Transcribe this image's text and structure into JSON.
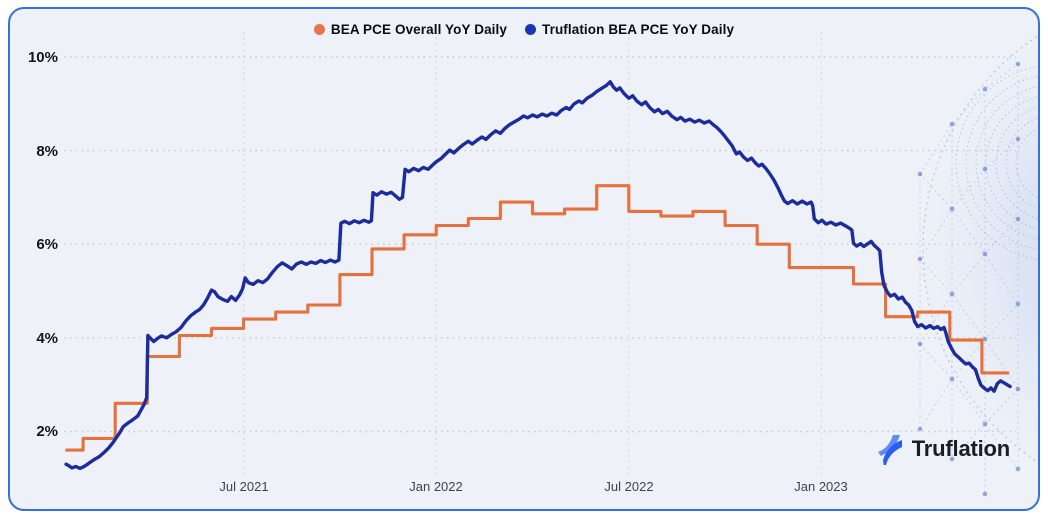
{
  "legend": {
    "items": [
      {
        "label": "BEA PCE Overall YoY Daily",
        "color": "#E8744A"
      },
      {
        "label": "Truflation BEA PCE YoY Daily",
        "color": "#1B35B5"
      }
    ]
  },
  "y_axis": {
    "labels": [
      "10%",
      "8%",
      "6%",
      "4%",
      "2%"
    ]
  },
  "x_axis": {
    "labels": [
      "Jul 2021",
      "Jan 2022",
      "Jul 2022",
      "Jan 2023"
    ]
  },
  "branding": {
    "name": "Truflation"
  },
  "colors": {
    "card_background": "#EEF1F7",
    "card_border": "#3470DE",
    "grid": "#C7CCD6",
    "bea_line": "#E5713C",
    "truflation_line": "#1C2B9D"
  },
  "chart_data": {
    "type": "line",
    "x_unit": "months since Jan 2021",
    "y_unit": "percent YoY",
    "ylim": [
      1,
      10.5
    ],
    "grid": "dotted",
    "legend_position": "top-center",
    "y_ticks": [
      10,
      8,
      6,
      4,
      2
    ],
    "x_ticks": [
      {
        "label": "Jul 2021",
        "month": 6
      },
      {
        "label": "Jan 2022",
        "month": 12
      },
      {
        "label": "Jul 2022",
        "month": 18
      },
      {
        "label": "Jan 2023",
        "month": 24
      }
    ],
    "series": [
      {
        "name": "BEA PCE Overall YoY Daily",
        "type": "step-monthly",
        "color": "#E5713C",
        "start_month": 0.45,
        "end_month": 29.85,
        "months": [
          "Jan 2021",
          "Feb 2021",
          "Mar 2021",
          "Apr 2021",
          "May 2021",
          "Jun 2021",
          "Jul 2021",
          "Aug 2021",
          "Sep 2021",
          "Oct 2021",
          "Nov 2021",
          "Dec 2021",
          "Jan 2022",
          "Feb 2022",
          "Mar 2022",
          "Apr 2022",
          "May 2022",
          "Jun 2022",
          "Jul 2022",
          "Aug 2022",
          "Sep 2022",
          "Oct 2022",
          "Nov 2022",
          "Dec 2022",
          "Jan 2023",
          "Feb 2023",
          "Mar 2023",
          "Apr 2023",
          "May 2023",
          "Jun 2023"
        ],
        "values": [
          1.6,
          1.85,
          2.6,
          3.6,
          4.05,
          4.2,
          4.4,
          4.55,
          4.7,
          5.35,
          5.9,
          6.2,
          6.4,
          6.55,
          6.9,
          6.65,
          6.75,
          7.25,
          6.7,
          6.6,
          6.7,
          6.4,
          6.0,
          5.5,
          5.5,
          5.15,
          4.45,
          4.55,
          3.95,
          3.25
        ]
      },
      {
        "name": "Truflation BEA PCE YoY Daily",
        "type": "line-daily",
        "color": "#1C2B9D",
        "points": [
          [
            0.47,
            1.3
          ],
          [
            0.55,
            1.27
          ],
          [
            0.65,
            1.22
          ],
          [
            0.78,
            1.25
          ],
          [
            0.9,
            1.21
          ],
          [
            1,
            1.24
          ],
          [
            1.1,
            1.28
          ],
          [
            1.2,
            1.33
          ],
          [
            1.35,
            1.4
          ],
          [
            1.5,
            1.46
          ],
          [
            1.65,
            1.55
          ],
          [
            1.8,
            1.65
          ],
          [
            1.93,
            1.76
          ],
          [
            2.05,
            1.88
          ],
          [
            2.15,
            1.98
          ],
          [
            2.25,
            2.1
          ],
          [
            2.4,
            2.18
          ],
          [
            2.55,
            2.25
          ],
          [
            2.7,
            2.33
          ],
          [
            2.8,
            2.45
          ],
          [
            2.9,
            2.58
          ],
          [
            2.98,
            2.72
          ],
          [
            3.02,
            4.05
          ],
          [
            3.1,
            3.99
          ],
          [
            3.2,
            3.92
          ],
          [
            3.32,
            3.99
          ],
          [
            3.45,
            4.04
          ],
          [
            3.6,
            4
          ],
          [
            3.75,
            4.07
          ],
          [
            3.9,
            4.13
          ],
          [
            4.05,
            4.22
          ],
          [
            4.2,
            4.36
          ],
          [
            4.35,
            4.47
          ],
          [
            4.5,
            4.55
          ],
          [
            4.62,
            4.6
          ],
          [
            4.75,
            4.7
          ],
          [
            4.88,
            4.85
          ],
          [
            5,
            5.02
          ],
          [
            5.1,
            4.98
          ],
          [
            5.2,
            4.88
          ],
          [
            5.35,
            4.82
          ],
          [
            5.5,
            4.78
          ],
          [
            5.62,
            4.88
          ],
          [
            5.75,
            4.8
          ],
          [
            5.88,
            4.92
          ],
          [
            5.97,
            5.05
          ],
          [
            6.05,
            5.28
          ],
          [
            6.15,
            5.18
          ],
          [
            6.3,
            5.14
          ],
          [
            6.45,
            5.22
          ],
          [
            6.6,
            5.18
          ],
          [
            6.75,
            5.26
          ],
          [
            6.9,
            5.4
          ],
          [
            7.05,
            5.52
          ],
          [
            7.2,
            5.6
          ],
          [
            7.35,
            5.54
          ],
          [
            7.5,
            5.47
          ],
          [
            7.65,
            5.58
          ],
          [
            7.8,
            5.62
          ],
          [
            7.95,
            5.57
          ],
          [
            8.1,
            5.62
          ],
          [
            8.25,
            5.59
          ],
          [
            8.4,
            5.65
          ],
          [
            8.55,
            5.61
          ],
          [
            8.7,
            5.66
          ],
          [
            8.85,
            5.62
          ],
          [
            8.97,
            5.66
          ],
          [
            9.03,
            6.45
          ],
          [
            9.15,
            6.49
          ],
          [
            9.3,
            6.44
          ],
          [
            9.45,
            6.5
          ],
          [
            9.6,
            6.46
          ],
          [
            9.75,
            6.51
          ],
          [
            9.9,
            6.47
          ],
          [
            9.98,
            6.5
          ],
          [
            10.03,
            7.1
          ],
          [
            10.15,
            7.05
          ],
          [
            10.3,
            7.12
          ],
          [
            10.45,
            7.07
          ],
          [
            10.6,
            7.11
          ],
          [
            10.72,
            7.04
          ],
          [
            10.85,
            6.96
          ],
          [
            10.95,
            7
          ],
          [
            11.03,
            7.6
          ],
          [
            11.15,
            7.55
          ],
          [
            11.3,
            7.62
          ],
          [
            11.45,
            7.57
          ],
          [
            11.6,
            7.64
          ],
          [
            11.75,
            7.6
          ],
          [
            11.9,
            7.7
          ],
          [
            12,
            7.76
          ],
          [
            12.15,
            7.83
          ],
          [
            12.3,
            7.93
          ],
          [
            12.42,
            8.01
          ],
          [
            12.55,
            7.95
          ],
          [
            12.7,
            8.05
          ],
          [
            12.85,
            8.13
          ],
          [
            13,
            8.2
          ],
          [
            13.12,
            8.14
          ],
          [
            13.27,
            8.22
          ],
          [
            13.42,
            8.29
          ],
          [
            13.55,
            8.24
          ],
          [
            13.7,
            8.34
          ],
          [
            13.85,
            8.42
          ],
          [
            14,
            8.37
          ],
          [
            14.15,
            8.48
          ],
          [
            14.3,
            8.56
          ],
          [
            14.45,
            8.62
          ],
          [
            14.6,
            8.68
          ],
          [
            14.72,
            8.74
          ],
          [
            14.85,
            8.7
          ],
          [
            15,
            8.76
          ],
          [
            15.15,
            8.72
          ],
          [
            15.3,
            8.78
          ],
          [
            15.45,
            8.74
          ],
          [
            15.6,
            8.8
          ],
          [
            15.75,
            8.76
          ],
          [
            15.9,
            8.86
          ],
          [
            16.05,
            8.92
          ],
          [
            16.15,
            8.88
          ],
          [
            16.3,
            9
          ],
          [
            16.45,
            9.06
          ],
          [
            16.55,
            9.02
          ],
          [
            16.7,
            9.12
          ],
          [
            16.85,
            9.18
          ],
          [
            17,
            9.26
          ],
          [
            17.15,
            9.33
          ],
          [
            17.3,
            9.39
          ],
          [
            17.42,
            9.47
          ],
          [
            17.52,
            9.36
          ],
          [
            17.62,
            9.29
          ],
          [
            17.72,
            9.34
          ],
          [
            17.85,
            9.22
          ],
          [
            18,
            9.12
          ],
          [
            18.12,
            9.17
          ],
          [
            18.25,
            9.06
          ],
          [
            18.4,
            8.98
          ],
          [
            18.52,
            9.04
          ],
          [
            18.65,
            8.92
          ],
          [
            18.8,
            8.83
          ],
          [
            18.92,
            8.88
          ],
          [
            19.05,
            8.79
          ],
          [
            19.2,
            8.84
          ],
          [
            19.35,
            8.73
          ],
          [
            19.5,
            8.66
          ],
          [
            19.62,
            8.71
          ],
          [
            19.75,
            8.63
          ],
          [
            19.9,
            8.67
          ],
          [
            20.05,
            8.61
          ],
          [
            20.2,
            8.65
          ],
          [
            20.35,
            8.59
          ],
          [
            20.5,
            8.63
          ],
          [
            20.62,
            8.56
          ],
          [
            20.75,
            8.49
          ],
          [
            20.88,
            8.4
          ],
          [
            21,
            8.3
          ],
          [
            21.1,
            8.21
          ],
          [
            21.22,
            8.1
          ],
          [
            21.35,
            7.93
          ],
          [
            21.45,
            7.97
          ],
          [
            21.58,
            7.86
          ],
          [
            21.7,
            7.79
          ],
          [
            21.82,
            7.84
          ],
          [
            21.95,
            7.73
          ],
          [
            22.05,
            7.67
          ],
          [
            22.15,
            7.71
          ],
          [
            22.28,
            7.61
          ],
          [
            22.4,
            7.5
          ],
          [
            22.52,
            7.37
          ],
          [
            22.65,
            7.2
          ],
          [
            22.75,
            7.05
          ],
          [
            22.85,
            6.92
          ],
          [
            22.95,
            6.87
          ],
          [
            23.1,
            6.93
          ],
          [
            23.25,
            6.86
          ],
          [
            23.4,
            6.92
          ],
          [
            23.55,
            6.86
          ],
          [
            23.68,
            6.9
          ],
          [
            23.73,
            6.82
          ],
          [
            23.78,
            6.54
          ],
          [
            23.9,
            6.46
          ],
          [
            24.02,
            6.51
          ],
          [
            24.15,
            6.43
          ],
          [
            24.3,
            6.47
          ],
          [
            24.45,
            6.41
          ],
          [
            24.6,
            6.45
          ],
          [
            24.75,
            6.39
          ],
          [
            24.88,
            6.34
          ],
          [
            24.95,
            6.3
          ],
          [
            25,
            6.02
          ],
          [
            25.1,
            5.96
          ],
          [
            25.22,
            6.01
          ],
          [
            25.32,
            5.95
          ],
          [
            25.45,
            6.01
          ],
          [
            25.55,
            6.06
          ],
          [
            25.65,
            5.97
          ],
          [
            25.75,
            5.91
          ],
          [
            25.82,
            5.86
          ],
          [
            25.88,
            5.4
          ],
          [
            25.95,
            5.12
          ],
          [
            26.05,
            4.98
          ],
          [
            26.15,
            4.89
          ],
          [
            26.28,
            4.93
          ],
          [
            26.4,
            4.83
          ],
          [
            26.52,
            4.87
          ],
          [
            26.62,
            4.76
          ],
          [
            26.72,
            4.7
          ],
          [
            26.82,
            4.58
          ],
          [
            26.9,
            4.35
          ],
          [
            27,
            4.24
          ],
          [
            27.12,
            4.28
          ],
          [
            27.25,
            4.21
          ],
          [
            27.38,
            4.26
          ],
          [
            27.5,
            4.2
          ],
          [
            27.62,
            4.24
          ],
          [
            27.72,
            4.18
          ],
          [
            27.82,
            4.22
          ],
          [
            27.88,
            4.1
          ],
          [
            27.95,
            3.92
          ],
          [
            28.05,
            3.78
          ],
          [
            28.15,
            3.66
          ],
          [
            28.28,
            3.58
          ],
          [
            28.4,
            3.5
          ],
          [
            28.5,
            3.44
          ],
          [
            28.6,
            3.46
          ],
          [
            28.7,
            3.38
          ],
          [
            28.8,
            3.32
          ],
          [
            28.88,
            3.15
          ],
          [
            28.97,
            2.99
          ],
          [
            29.08,
            2.92
          ],
          [
            29.18,
            2.87
          ],
          [
            29.28,
            2.93
          ],
          [
            29.38,
            2.86
          ],
          [
            29.48,
            3.02
          ],
          [
            29.58,
            3.08
          ],
          [
            29.68,
            3.04
          ],
          [
            29.78,
            3
          ],
          [
            29.88,
            2.96
          ]
        ]
      }
    ]
  }
}
